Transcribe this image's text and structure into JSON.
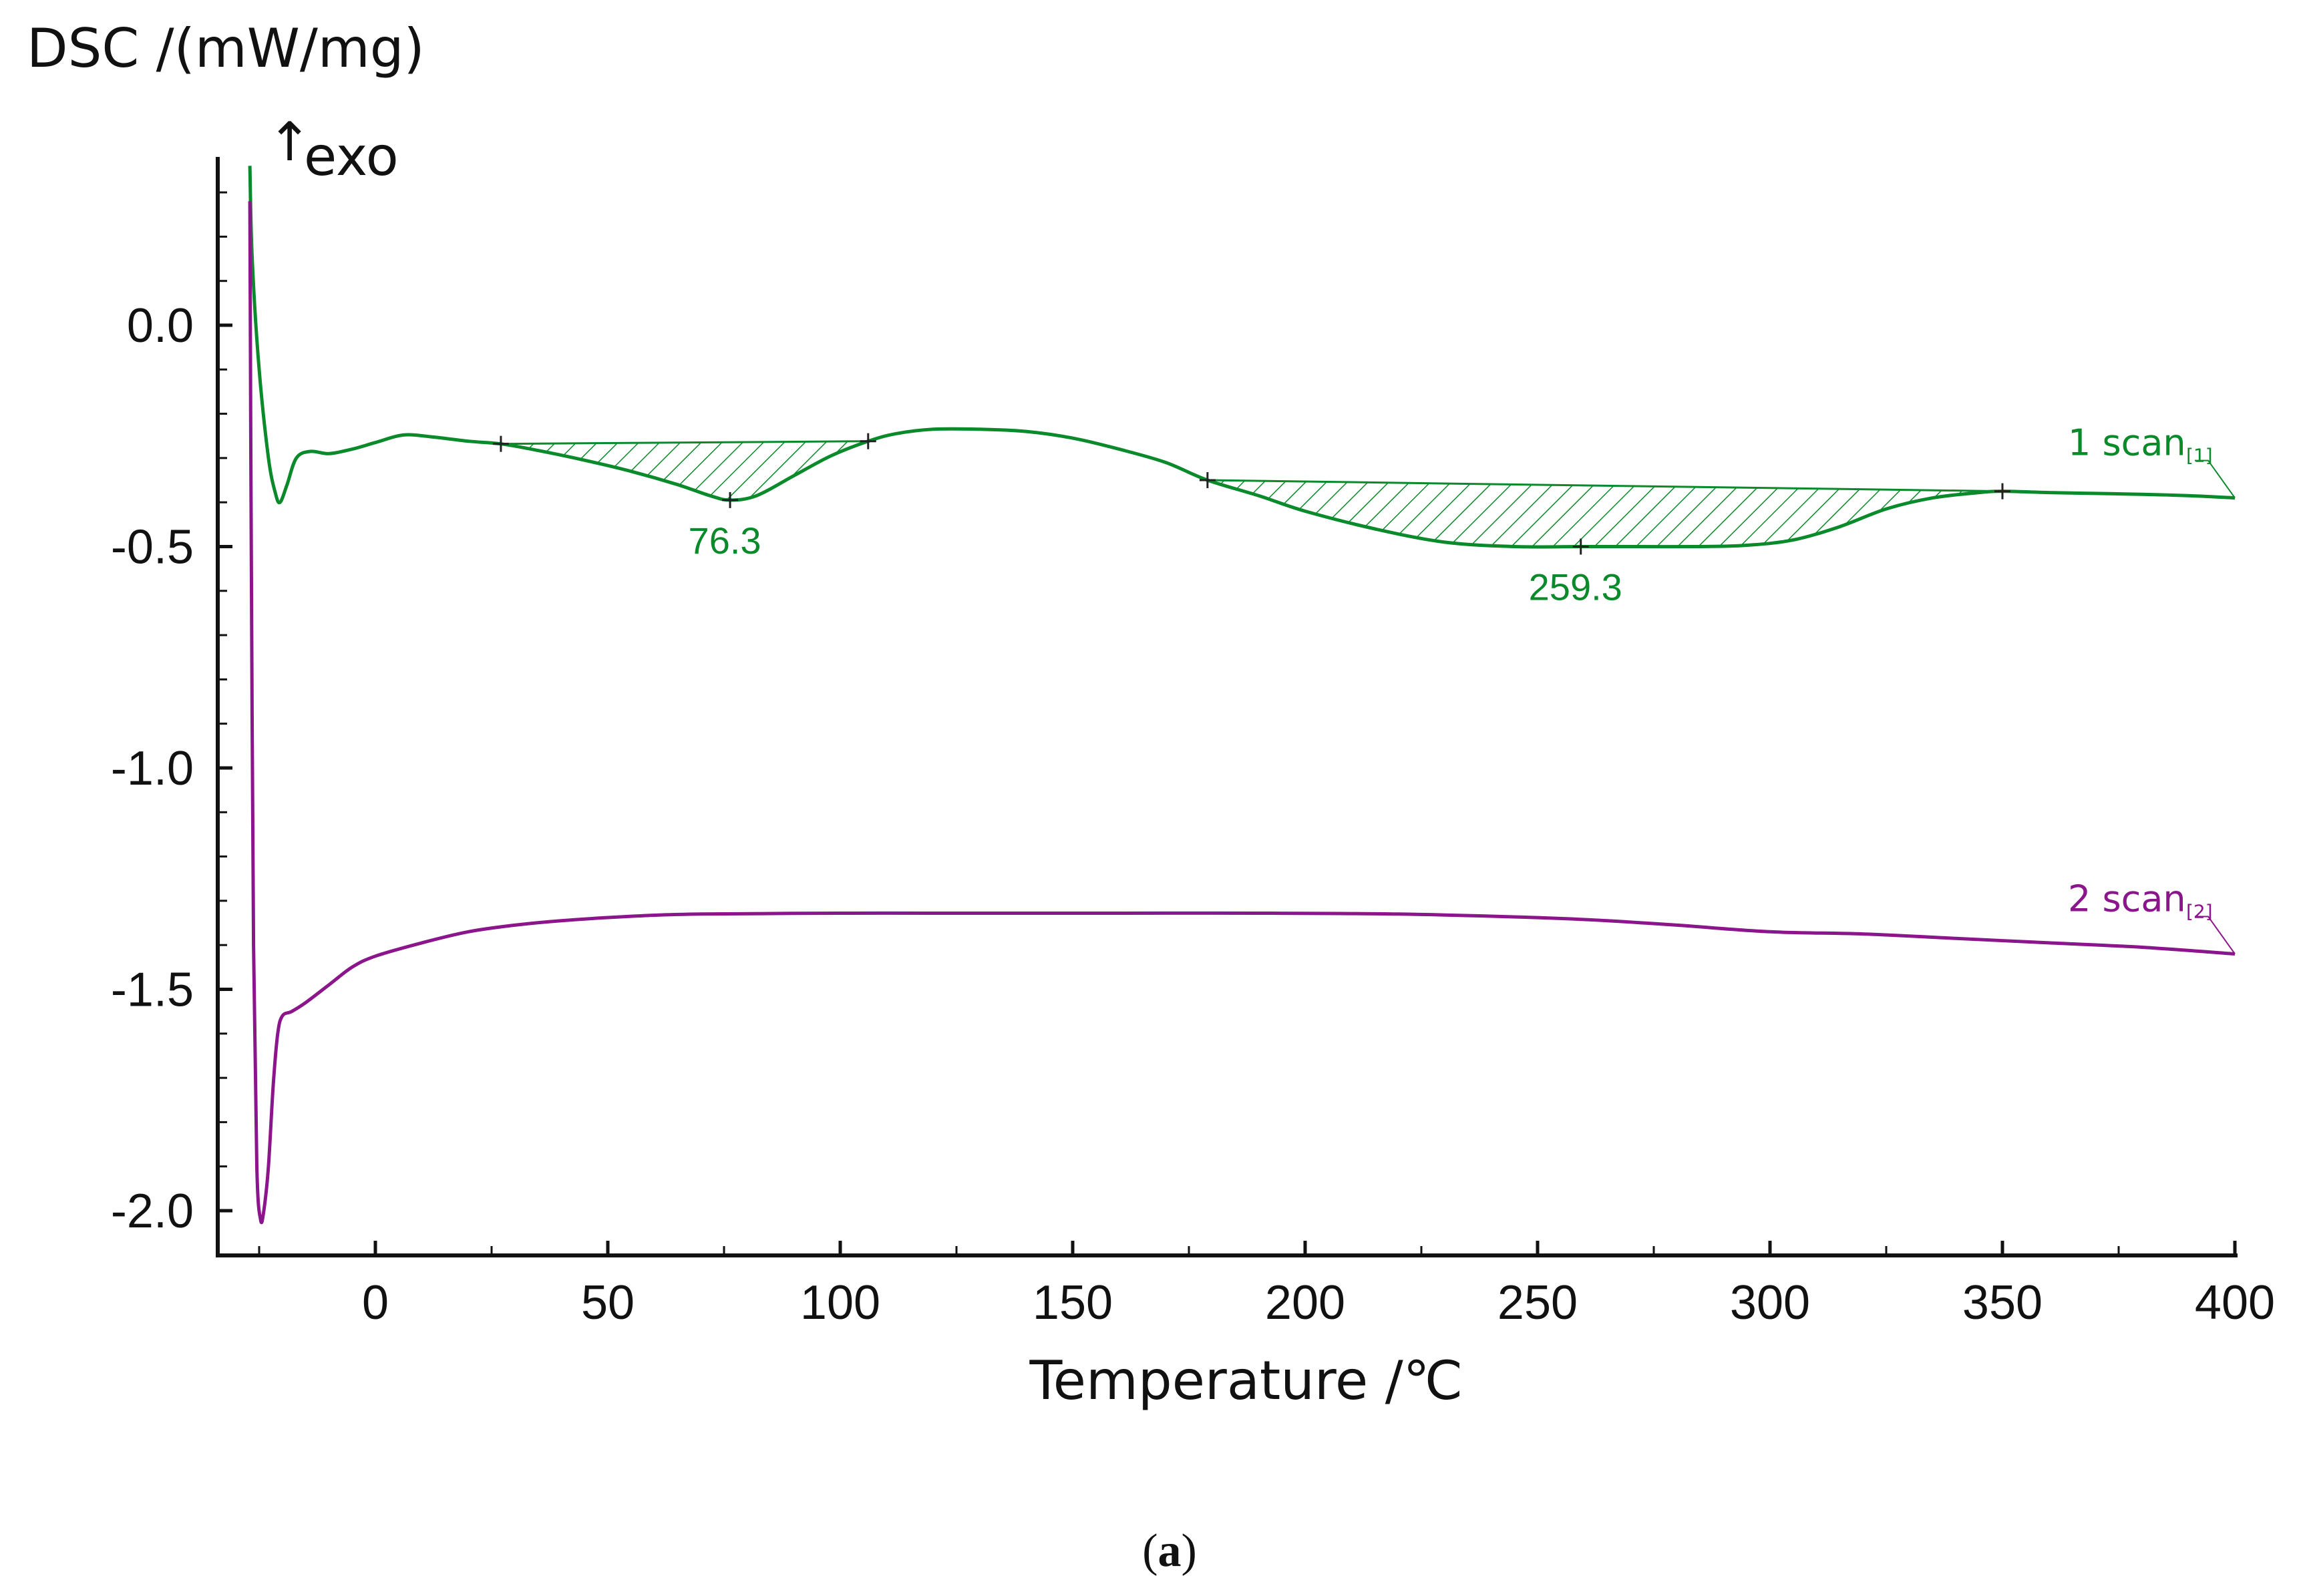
{
  "chart_data": {
    "type": "line",
    "ylabel": "DSC /(mW/mg)",
    "xlabel": "Temperature /℃",
    "exo_label": "exo",
    "exo_arrow": "↑",
    "caption": "(a)",
    "caption_letter": "a",
    "xlim": [
      -33,
      400
    ],
    "ylim": [
      -2.1,
      0.38
    ],
    "x_ticks": [
      0,
      50,
      100,
      150,
      200,
      250,
      300,
      350,
      400
    ],
    "x_tick_labels": [
      "0",
      "50",
      "100",
      "150",
      "200",
      "250",
      "300",
      "350",
      "400"
    ],
    "y_ticks": [
      0.0,
      -0.5,
      -1.0,
      -1.5,
      -2.0
    ],
    "y_tick_labels": [
      "0.0",
      "-0.5",
      "-1.0",
      "-1.5",
      "-2.0"
    ],
    "colors": {
      "scan1": "#0a8a2a",
      "scan2": "#8b158b",
      "axis": "#111111"
    },
    "series": [
      {
        "name": "1 scan",
        "tag": "[1]",
        "x": [
          -27,
          -26.5,
          -25,
          -23,
          -21.5,
          -20.5,
          -19,
          -17,
          -14,
          -10,
          -5,
          0,
          6,
          12,
          20,
          27,
          35,
          45,
          55,
          65,
          72,
          76.3,
          82,
          90,
          98,
          106,
          112,
          120,
          130,
          140,
          150,
          160,
          170,
          179,
          190,
          200,
          215,
          230,
          245,
          259.3,
          270,
          285,
          295,
          305,
          315,
          325,
          335,
          345,
          350,
          360,
          370,
          380,
          390,
          400
        ],
        "y": [
          0.36,
          0.15,
          -0.1,
          -0.3,
          -0.38,
          -0.4,
          -0.36,
          -0.3,
          -0.285,
          -0.29,
          -0.28,
          -0.265,
          -0.248,
          -0.252,
          -0.262,
          -0.268,
          -0.283,
          -0.305,
          -0.33,
          -0.36,
          -0.385,
          -0.395,
          -0.385,
          -0.34,
          -0.295,
          -0.262,
          -0.245,
          -0.235,
          -0.235,
          -0.24,
          -0.255,
          -0.28,
          -0.31,
          -0.35,
          -0.385,
          -0.42,
          -0.46,
          -0.49,
          -0.5,
          -0.5,
          -0.5,
          -0.5,
          -0.497,
          -0.485,
          -0.455,
          -0.415,
          -0.39,
          -0.378,
          -0.375,
          -0.378,
          -0.38,
          -0.382,
          -0.385,
          -0.39
        ]
      },
      {
        "name": "2 scan",
        "tag": "[2]",
        "x": [
          -27,
          -26.7,
          -26.2,
          -25.5,
          -24.7,
          -24,
          -23,
          -22,
          -21,
          -20,
          -18,
          -15,
          -10,
          -5,
          0,
          10,
          20,
          30,
          40,
          55,
          70,
          100,
          130,
          160,
          190,
          220,
          250,
          265,
          280,
          300,
          320,
          340,
          360,
          380,
          400
        ],
        "y": [
          0.28,
          -0.5,
          -1.4,
          -1.9,
          -2.02,
          -2.0,
          -1.9,
          -1.72,
          -1.6,
          -1.56,
          -1.55,
          -1.53,
          -1.49,
          -1.45,
          -1.425,
          -1.395,
          -1.37,
          -1.355,
          -1.345,
          -1.335,
          -1.33,
          -1.328,
          -1.328,
          -1.328,
          -1.328,
          -1.33,
          -1.338,
          -1.345,
          -1.355,
          -1.37,
          -1.375,
          -1.385,
          -1.395,
          -1.405,
          -1.42
        ]
      }
    ],
    "peaks": [
      {
        "label": "76.3",
        "x": 76.3,
        "y": -0.395,
        "baseline_x": [
          27,
          106
        ],
        "baseline_y": [
          -0.268,
          -0.262
        ]
      },
      {
        "label": "259.3",
        "x": 259.3,
        "y": -0.5,
        "baseline_x": [
          179,
          350
        ],
        "baseline_y": [
          -0.35,
          -0.375
        ]
      }
    ]
  }
}
